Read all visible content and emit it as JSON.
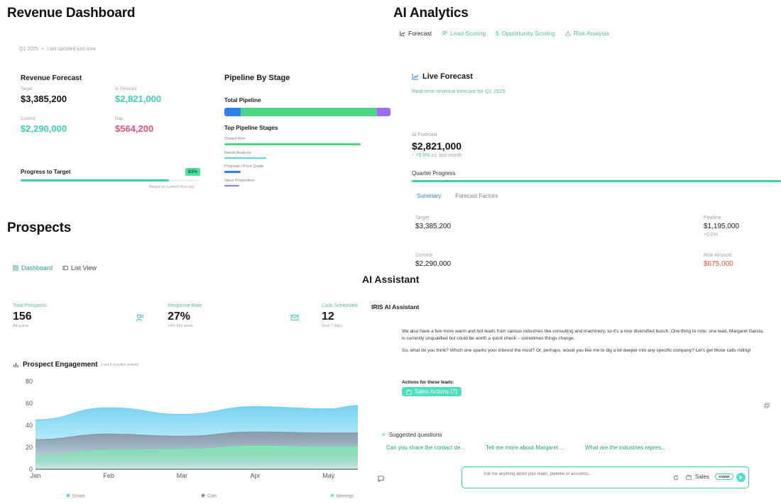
{
  "revenue": {
    "title": "Revenue Dashboard",
    "subtitle_period": "Q1 2025",
    "subtitle_updated": "Last updated just now",
    "forecast_title": "Revenue Forecast",
    "metrics": [
      {
        "label": "Target",
        "value": "$3,385,200"
      },
      {
        "label": "AI Forecast",
        "value": "$2,821,000"
      },
      {
        "label": "Commit",
        "value": "$2,290,000"
      },
      {
        "label": "Gap",
        "value": "$564,200"
      }
    ],
    "progress_label": "Progress to Target",
    "progress_pct_label": "83%",
    "progress_fraction": 0.83,
    "progress_note": "Based on current forecast",
    "pipeline_title": "Pipeline By Stage",
    "total_pipeline_label": "Total Pipeline",
    "total_pipeline_segments": [
      {
        "fraction": 0.1,
        "color": "#2f80ed"
      },
      {
        "fraction": 0.82,
        "color": "#4cd686"
      },
      {
        "fraction": 0.08,
        "color": "#9c6cf2"
      }
    ],
    "top_stages_label": "Top Pipeline Stages",
    "stages": [
      {
        "name": "Closed Won",
        "fraction": 0.82,
        "color": "#4cd686"
      },
      {
        "name": "Needs Analysis",
        "fraction": 0.25,
        "color": "#4ddfd0"
      },
      {
        "name": "Proposal / Price Quote",
        "fraction": 0.1,
        "color": "#2f80ed"
      },
      {
        "name": "Value Proposition",
        "fraction": 0.09,
        "color": "#9c6cf2"
      }
    ]
  },
  "analytics": {
    "title": "AI Analytics",
    "tabs": [
      "Forecast",
      "Lead Scoring",
      "Opportunity Scoring",
      "Risk Analysis"
    ],
    "live_title": "Live Forecast",
    "live_subtitle": "Real-time revenue forecast for Q1 2025",
    "ai_forecast_label": "AI Forecast",
    "ai_forecast_value": "$2,821,000",
    "change": "+5.0%",
    "change_note": "vs. last month",
    "quarter_progress_label": "Quarter Progress",
    "quarter_progress_fraction": 1.0,
    "subtabs": [
      "Summary",
      "Forecast Factors"
    ],
    "summary": [
      {
        "label": "Target",
        "value": "$3,385,200",
        "note": ""
      },
      {
        "label": "Pipeline",
        "value": "$1,195,000",
        "note": "+0.0%"
      },
      {
        "label": "Commit",
        "value": "$2,290,000",
        "note": ""
      },
      {
        "label": "Risk Amount",
        "value": "$675,000",
        "note": ""
      }
    ]
  },
  "prospects": {
    "title": "Prospects",
    "tabs": [
      "Dashboard",
      "List View"
    ],
    "stats": [
      {
        "label": "Total Prospects",
        "value": "156",
        "note": "All active"
      },
      {
        "label": "Response Rate",
        "value": "27%",
        "note": "+4% this week"
      },
      {
        "label": "Calls Scheduled",
        "value": "12",
        "note": "Next 7 days"
      }
    ],
    "engagement_title": "Prospect Engagement",
    "engagement_subtitle": "Last 6 months activity"
  },
  "chart_data": {
    "type": "area",
    "categories": [
      "Jan",
      "Feb",
      "Mar",
      "Apr",
      "May"
    ],
    "ylim": [
      0,
      80
    ],
    "yticks": [
      0,
      20,
      40,
      60,
      80
    ],
    "series": [
      {
        "name": "Emails",
        "values": [
          45,
          56,
          50,
          57,
          55,
          58
        ],
        "color": "#6fd1f3"
      },
      {
        "name": "Calls",
        "values": [
          27,
          32,
          30,
          34,
          33,
          33
        ],
        "color": "#8a97a3"
      },
      {
        "name": "Meetings",
        "values": [
          12,
          17,
          18,
          21,
          20,
          20
        ],
        "color": "#7ee7b2"
      }
    ],
    "x": [
      0,
      1,
      2,
      3,
      4,
      4.4
    ],
    "legend": "bottom"
  },
  "assistant": {
    "title": "AI Assistant",
    "name": "IRIS AI Assistant",
    "message_p1": "We also have a few more warm and hot leads from various industries like consulting and machinery, so it's a nice diversified bunch. One thing to note: one lead, Margaret Garcia, is currently unqualified but could be worth a quick check – sometimes things change.",
    "message_p2": "So, what do you think? Which one sparks your interest the most? Or, perhaps, would you like me to dig a bit deeper into any specific company? Let's get those calls rolling!",
    "actions_label": "Actions for these leads:",
    "actions_button": "Sales Actions (7)",
    "suggested_label": "Suggested questions",
    "suggestions": [
      "Can you share the contact de...",
      "Tell me more about Margaret ...",
      "What are the industries repres..."
    ],
    "input_placeholder": "Ask me anything about your leads, pipeline or accounts...",
    "context_label": "Sales",
    "agent_badge": "AGENT"
  }
}
